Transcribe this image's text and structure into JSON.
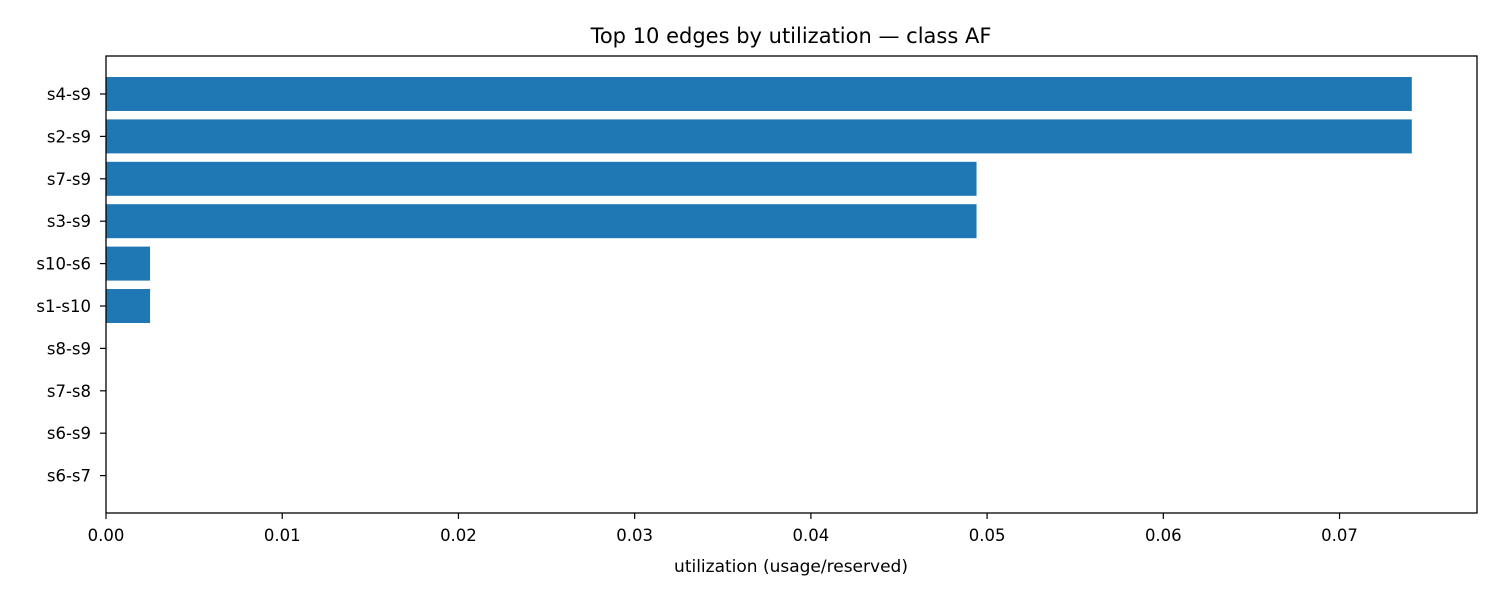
{
  "chart_data": {
    "type": "bar",
    "orientation": "horizontal",
    "title": "Top 10 edges by utilization — class AF",
    "xlabel": "utilization (usage/reserved)",
    "ylabel": "",
    "categories": [
      "s4-s9",
      "s2-s9",
      "s7-s9",
      "s3-s9",
      "s10-s6",
      "s1-s10",
      "s8-s9",
      "s7-s8",
      "s6-s9",
      "s6-s7"
    ],
    "values": [
      0.0741,
      0.0741,
      0.0494,
      0.0494,
      0.0025,
      0.0025,
      0.0,
      0.0,
      0.0,
      0.0
    ],
    "xlim": [
      0.0,
      0.0778
    ],
    "xticks": [
      "0.00",
      "0.01",
      "0.02",
      "0.03",
      "0.04",
      "0.05",
      "0.06",
      "0.07"
    ],
    "grid": false,
    "legend": "none",
    "bar_color": "#1f77b4"
  }
}
